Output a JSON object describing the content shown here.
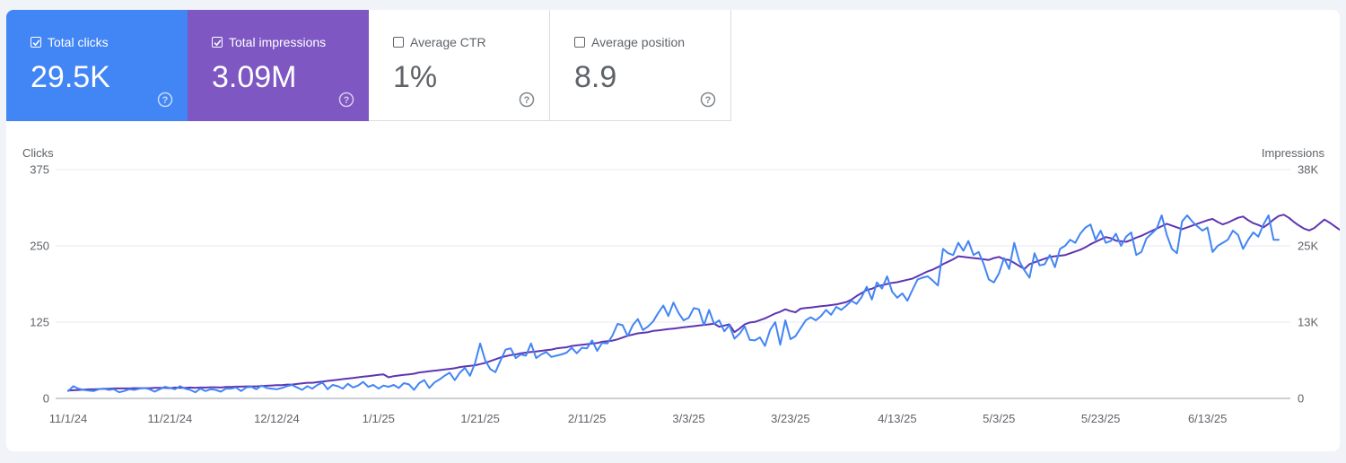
{
  "metrics": [
    {
      "label": "Total clicks",
      "value": "29.5K",
      "checked": true,
      "color": "#4285f4"
    },
    {
      "label": "Total impressions",
      "value": "3.09M",
      "checked": true,
      "color": "#7e57c2"
    },
    {
      "label": "Average CTR",
      "value": "1%",
      "checked": false,
      "color": "#ffffff"
    },
    {
      "label": "Average position",
      "value": "8.9",
      "checked": false,
      "color": "#ffffff"
    }
  ],
  "icons": {
    "checkbox": "checkbox-icon",
    "help": "help-circle-icon"
  },
  "chart_data": {
    "type": "line",
    "ylabel_left": "Clicks",
    "ylabel_right": "Impressions",
    "left_ticks": [
      "0",
      "125",
      "250",
      "375"
    ],
    "right_ticks": [
      "0",
      "13K",
      "25K",
      "38K"
    ],
    "ylim_left": [
      0,
      375
    ],
    "ylim_right": [
      0,
      38000
    ],
    "x_ticks": [
      "11/1/24",
      "11/21/24",
      "12/12/24",
      "1/1/25",
      "1/21/25",
      "2/11/25",
      "3/3/25",
      "3/23/25",
      "4/13/25",
      "5/3/25",
      "5/23/25",
      "6/13/25"
    ],
    "x_tick_day_index": [
      0,
      20,
      41,
      61,
      81,
      102,
      122,
      142,
      163,
      183,
      203,
      224
    ],
    "x_start": "11/1/24",
    "x_end": "7/1/25",
    "grid": true,
    "series": [
      {
        "name": "Clicks",
        "axis": "left",
        "color": "#4285f4",
        "values": [
          12,
          20,
          16,
          14,
          13,
          12,
          15,
          16,
          14,
          15,
          10,
          12,
          15,
          14,
          16,
          17,
          15,
          11,
          15,
          19,
          17,
          15,
          20,
          16,
          14,
          10,
          16,
          12,
          15,
          14,
          11,
          16,
          16,
          18,
          12,
          18,
          19,
          15,
          21,
          17,
          16,
          15,
          17,
          20,
          22,
          18,
          14,
          20,
          16,
          22,
          26,
          15,
          22,
          20,
          16,
          24,
          18,
          21,
          27,
          19,
          22,
          16,
          21,
          19,
          22,
          17,
          25,
          23,
          14,
          25,
          30,
          17,
          26,
          31,
          37,
          42,
          30,
          42,
          50,
          37,
          58,
          90,
          62,
          48,
          43,
          62,
          80,
          82,
          66,
          72,
          70,
          90,
          66,
          72,
          76,
          68,
          70,
          72,
          75,
          83,
          74,
          83,
          82,
          95,
          78,
          91,
          90,
          103,
          122,
          120,
          102,
          120,
          130,
          112,
          118,
          126,
          140,
          152,
          135,
          157,
          140,
          128,
          132,
          148,
          146,
          120,
          145,
          122,
          128,
          110,
          120,
          98,
          106,
          118,
          96,
          95,
          100,
          86,
          112,
          125,
          88,
          128,
          97,
          102,
          115,
          128,
          133,
          128,
          135,
          145,
          137,
          150,
          145,
          152,
          160,
          155,
          166,
          183,
          162,
          190,
          180,
          200,
          175,
          165,
          172,
          160,
          178,
          195,
          198,
          200,
          193,
          185,
          245,
          238,
          235,
          255,
          242,
          258,
          235,
          240,
          220,
          195,
          190,
          205,
          230,
          212,
          255,
          225,
          210,
          198,
          238,
          218,
          220,
          235,
          215,
          245,
          250,
          260,
          255,
          270,
          280,
          285,
          260,
          275,
          255,
          258,
          270,
          250,
          265,
          272,
          235,
          240,
          262,
          270,
          278,
          300,
          268,
          245,
          238,
          290,
          300,
          290,
          282,
          275,
          280,
          240,
          250,
          255,
          260,
          275,
          268,
          245,
          260,
          272,
          265,
          285,
          300,
          260,
          260
        ]
      },
      {
        "name": "Impressions",
        "axis": "right",
        "color": "#5e35b1",
        "values": [
          1300,
          1350,
          1400,
          1450,
          1500,
          1500,
          1550,
          1600,
          1600,
          1650,
          1650,
          1650,
          1650,
          1700,
          1700,
          1700,
          1700,
          1750,
          1750,
          1750,
          1700,
          1800,
          1750,
          1750,
          1800,
          1750,
          1800,
          1800,
          1850,
          1850,
          1800,
          1900,
          1900,
          1950,
          1950,
          2000,
          2000,
          2000,
          2050,
          2100,
          2150,
          2200,
          2200,
          2300,
          2300,
          2400,
          2500,
          2600,
          2600,
          2700,
          2800,
          2900,
          3000,
          3100,
          3200,
          3300,
          3400,
          3500,
          3600,
          3700,
          3800,
          3900,
          4000,
          3500,
          3700,
          3800,
          3900,
          4000,
          4100,
          4300,
          4400,
          4500,
          4600,
          4700,
          4800,
          4900,
          5000,
          5200,
          5300,
          5400,
          5500,
          5700,
          5900,
          6200,
          6500,
          6800,
          7000,
          7200,
          7300,
          7500,
          7600,
          7700,
          7800,
          7900,
          8000,
          8100,
          8300,
          8400,
          8500,
          8700,
          8800,
          8900,
          9000,
          9100,
          9200,
          9400,
          9500,
          9600,
          9800,
          10100,
          10400,
          10600,
          10800,
          10900,
          11000,
          11200,
          11300,
          11400,
          11500,
          11600,
          11700,
          11800,
          11900,
          12000,
          12100,
          12200,
          12300,
          12400,
          11900,
          12100,
          12300,
          11000,
          11600,
          12300,
          12600,
          12700,
          13000,
          13300,
          13700,
          14100,
          14400,
          14800,
          14500,
          14300,
          14900,
          15000,
          15100,
          15200,
          15300,
          15400,
          15500,
          15600,
          15800,
          16000,
          16400,
          17000,
          17500,
          18000,
          18200,
          18600,
          18800,
          19000,
          19200,
          19300,
          19500,
          19700,
          19900,
          20300,
          20700,
          21100,
          21400,
          21800,
          22300,
          22700,
          23100,
          23600,
          23500,
          23400,
          23300,
          23200,
          23100,
          23000,
          23300,
          23500,
          23100,
          23000,
          22500,
          22000,
          21500,
          22300,
          22600,
          22900,
          23200,
          23500,
          23600,
          23700,
          23800,
          24100,
          24400,
          24700,
          25100,
          25600,
          26000,
          26400,
          26800,
          26600,
          26200,
          26100,
          26000,
          26300,
          26700,
          27000,
          27400,
          27800,
          28200,
          28600,
          29000,
          28700,
          28400,
          28100,
          28400,
          28700,
          29000,
          29300,
          29600,
          29800,
          29300,
          28900,
          29200,
          29600,
          30000,
          30200,
          29600,
          29100,
          28800,
          28400,
          29000,
          29700,
          30300,
          30500,
          30000,
          29300,
          28700,
          28200,
          27900,
          28300,
          29000,
          29700,
          29200,
          28600,
          28000
        ]
      }
    ]
  }
}
